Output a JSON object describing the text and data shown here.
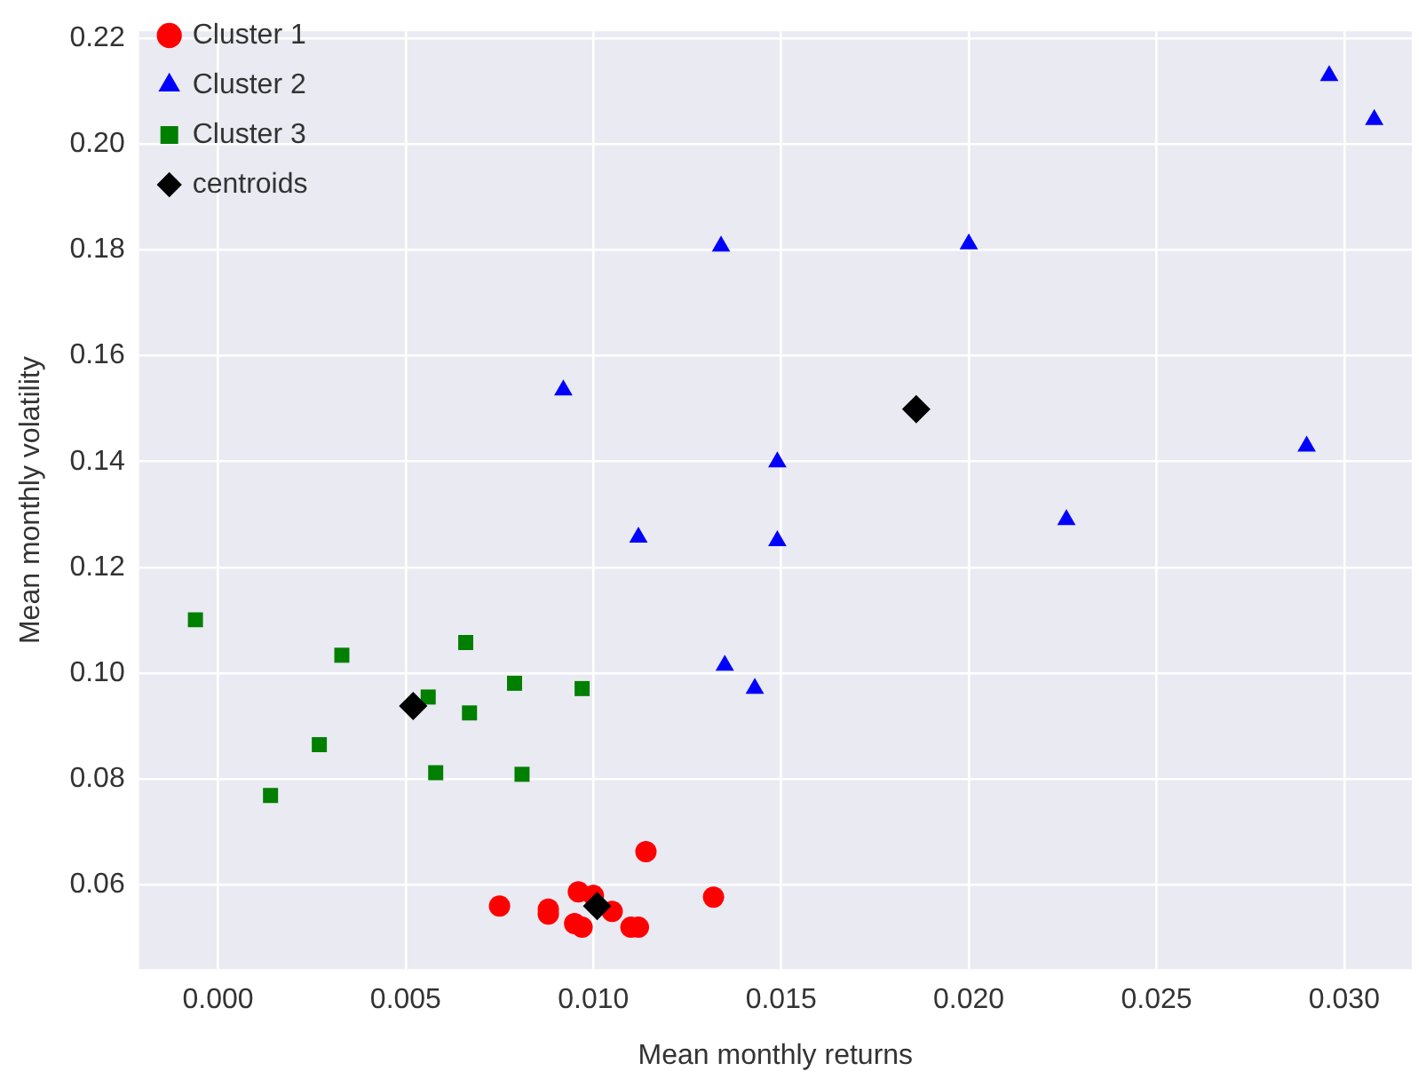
{
  "chart_data": {
    "type": "scatter",
    "xlabel": "Mean monthly returns",
    "ylabel": "Mean monthly volatility",
    "xlim": [
      -0.0021,
      0.0318
    ],
    "ylim": [
      0.0441,
      0.2213
    ],
    "xticks": [
      {
        "value": 0,
        "label": "0.000"
      },
      {
        "value": 0.005,
        "label": "0.005"
      },
      {
        "value": 0.01,
        "label": "0.010"
      },
      {
        "value": 0.015,
        "label": "0.015"
      },
      {
        "value": 0.02,
        "label": "0.020"
      },
      {
        "value": 0.025,
        "label": "0.025"
      },
      {
        "value": 0.03,
        "label": "0.030"
      }
    ],
    "yticks": [
      0.06,
      0.08,
      {
        "value": 0.1,
        "label": "0.10"
      },
      0.12,
      0.14,
      0.16,
      0.18,
      {
        "value": 0.2,
        "label": "0.20"
      },
      0.22
    ],
    "grid": true,
    "legend": "top left",
    "series": [
      {
        "name": "Cluster 1",
        "color": "#ff0000",
        "marker": "circle",
        "x": [
          0.0114,
          0.0132,
          0.0075,
          0.0088,
          0.0088,
          0.0096,
          0.01,
          0.0105,
          0.0095,
          0.0097,
          0.011,
          0.0112
        ],
        "values": [
          0.0663,
          0.0577,
          0.056,
          0.0554,
          0.0545,
          0.0587,
          0.058,
          0.055,
          0.0527,
          0.052,
          0.052,
          0.052
        ]
      },
      {
        "name": "Cluster 2",
        "color": "#0000ff",
        "marker": "triangle",
        "x": [
          0.0296,
          0.0308,
          0.0134,
          0.02,
          0.0092,
          0.0149,
          0.029,
          0.0112,
          0.0149,
          0.0226,
          0.0135,
          0.0143
        ],
        "values": [
          0.2129,
          0.2046,
          0.1807,
          0.1811,
          0.1535,
          0.1399,
          0.1429,
          0.1257,
          0.125,
          0.129,
          0.1015,
          0.0971
        ]
      },
      {
        "name": "Cluster 3",
        "color": "#007f00",
        "marker": "square",
        "x": [
          -0.0006,
          0.0033,
          0.0066,
          0.0056,
          0.0079,
          0.0097,
          0.0067,
          0.0027,
          0.0058,
          0.0081,
          0.0014
        ],
        "values": [
          0.1101,
          0.1034,
          0.1058,
          0.0955,
          0.0981,
          0.0971,
          0.0925,
          0.0865,
          0.0812,
          0.0809,
          0.0769
        ]
      },
      {
        "name": "centroids",
        "color": "#000000",
        "marker": "diamond",
        "x": [
          0.0186,
          0.0052,
          0.0101
        ],
        "values": [
          0.1499,
          0.0938,
          0.056
        ]
      }
    ]
  }
}
